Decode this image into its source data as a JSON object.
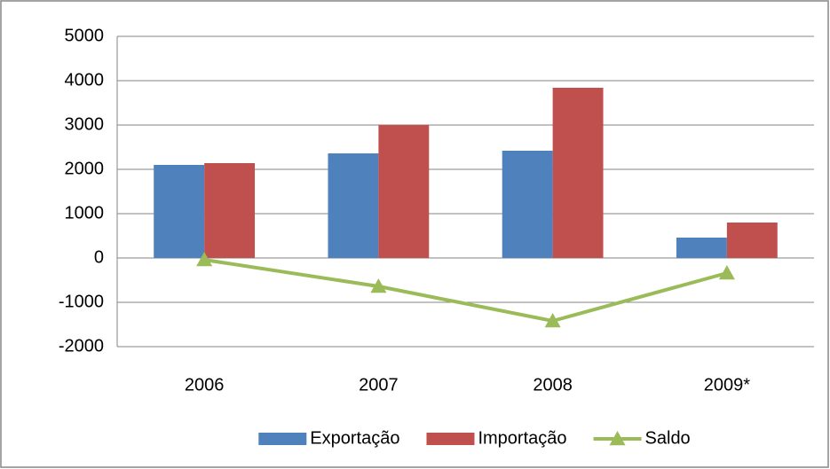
{
  "chart_data": {
    "type": "bar",
    "categories": [
      "2006",
      "2007",
      "2008",
      "2009*"
    ],
    "series": [
      {
        "name": "Exportação",
        "color": "#4f81bd",
        "values": [
          2100,
          2360,
          2420,
          460
        ]
      },
      {
        "name": "Importação",
        "color": "#c0504d",
        "values": [
          2140,
          3000,
          3840,
          800
        ]
      },
      {
        "name": "Saldo",
        "type": "line",
        "color": "#9bbb59",
        "values": [
          -40,
          -640,
          -1420,
          -340
        ]
      }
    ],
    "ylim": [
      -2000,
      5000
    ],
    "yticks": [
      -2000,
      -1000,
      0,
      1000,
      2000,
      3000,
      4000,
      5000
    ],
    "grid": true,
    "legend": "bottom"
  }
}
